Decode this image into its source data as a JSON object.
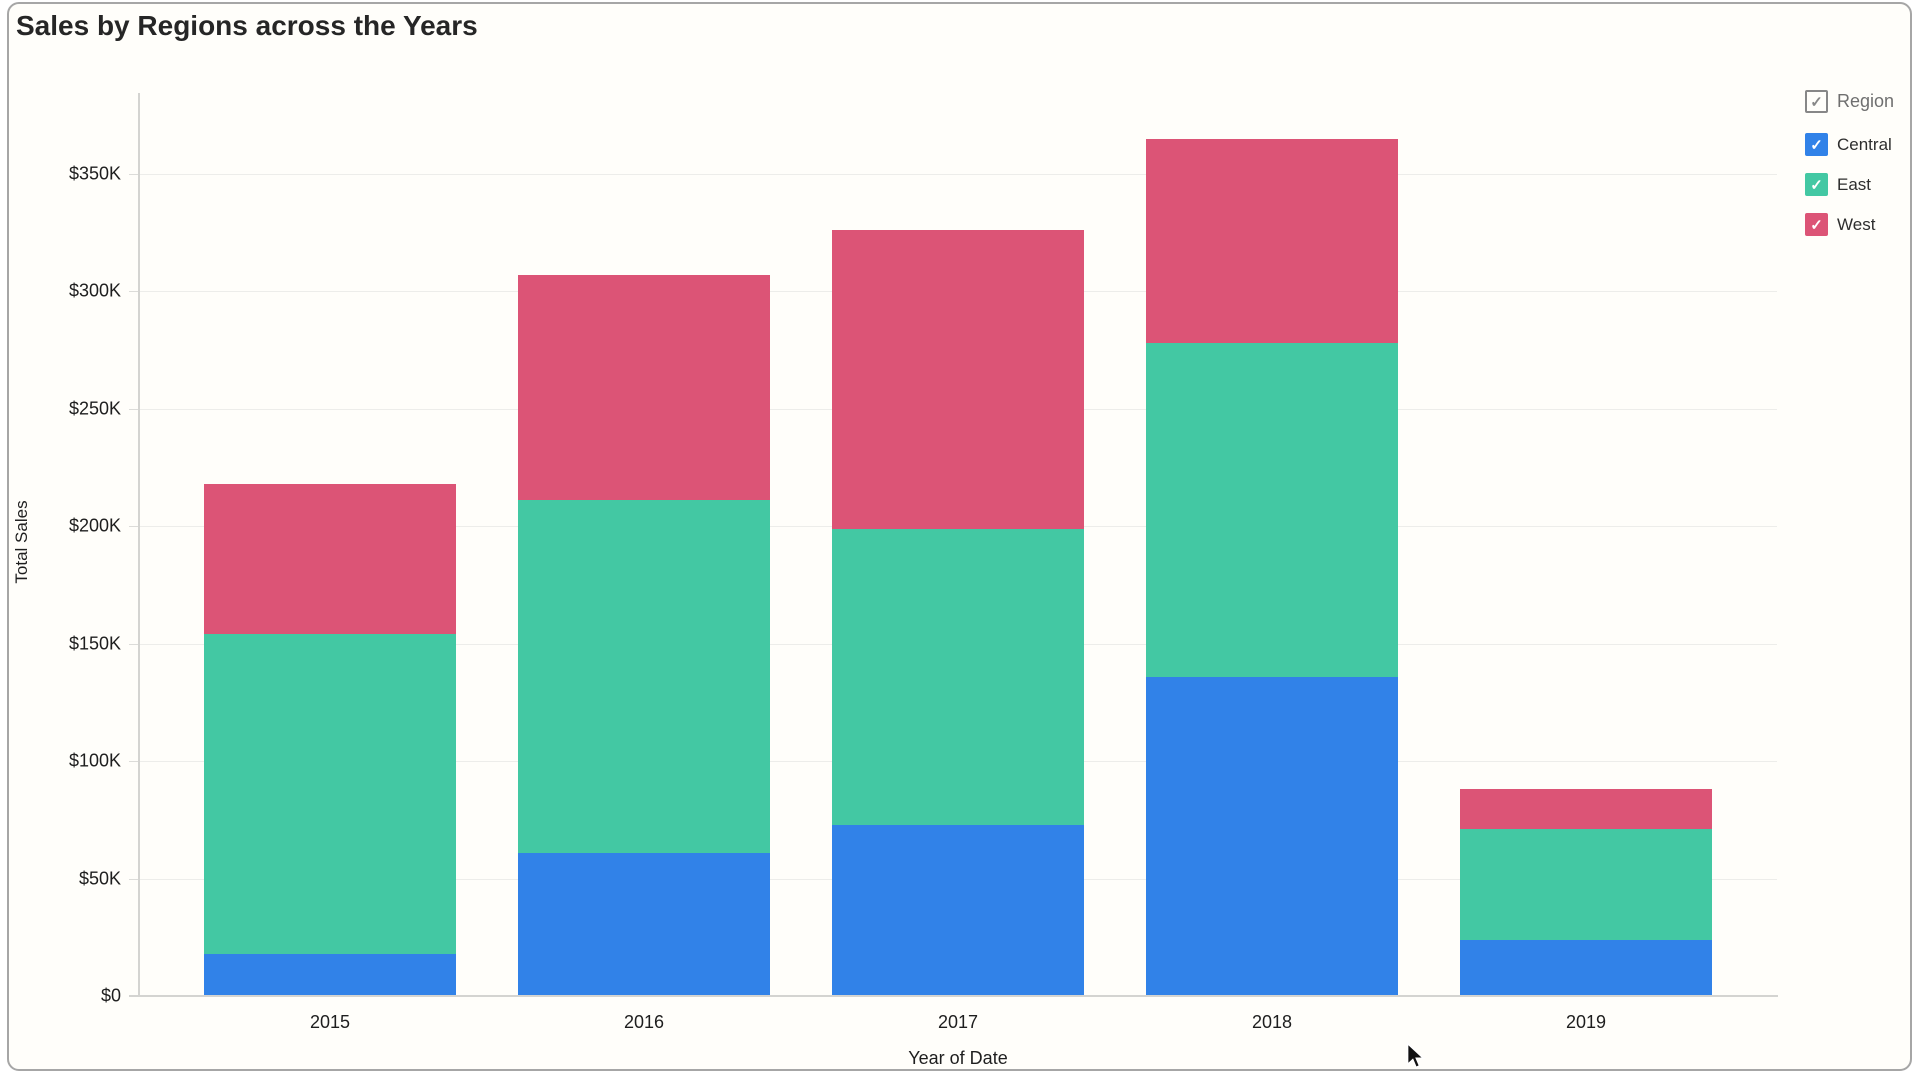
{
  "header": {
    "title": "Sales by Regions across the Years"
  },
  "chart_data": {
    "type": "bar",
    "stacked": true,
    "title": "Sales by Regions across the Years",
    "xlabel": "Year of Date",
    "ylabel": "Total Sales",
    "categories": [
      "2015",
      "2016",
      "2017",
      "2018",
      "2019"
    ],
    "series": [
      {
        "name": "Central",
        "color": "#3182e8",
        "values_k": [
          18,
          61,
          73,
          136,
          24
        ]
      },
      {
        "name": "East",
        "color": "#43c8a3",
        "values_k": [
          136,
          150,
          126,
          142,
          47
        ]
      },
      {
        "name": "West",
        "color": "#dc5476",
        "values_k": [
          64,
          96,
          127,
          87,
          17
        ]
      }
    ],
    "totals_k": [
      218,
      307,
      326,
      365,
      88
    ],
    "y_ticks": [
      "$0",
      "$50K",
      "$100K",
      "$150K",
      "$200K",
      "$250K",
      "$300K",
      "$350K"
    ],
    "y_tick_values_k": [
      0,
      50,
      100,
      150,
      200,
      250,
      300,
      350
    ],
    "ylim_k": [
      0,
      384
    ],
    "grid": "horizontal",
    "legend_position": "top-right"
  },
  "legend": {
    "checkmark": "✓",
    "header": {
      "label": "Region",
      "checked": true
    },
    "items": [
      {
        "label": "Central",
        "color": "#3182e8",
        "checked": true
      },
      {
        "label": "East",
        "color": "#43c8a3",
        "checked": true
      },
      {
        "label": "West",
        "color": "#dc5476",
        "checked": true
      }
    ]
  }
}
